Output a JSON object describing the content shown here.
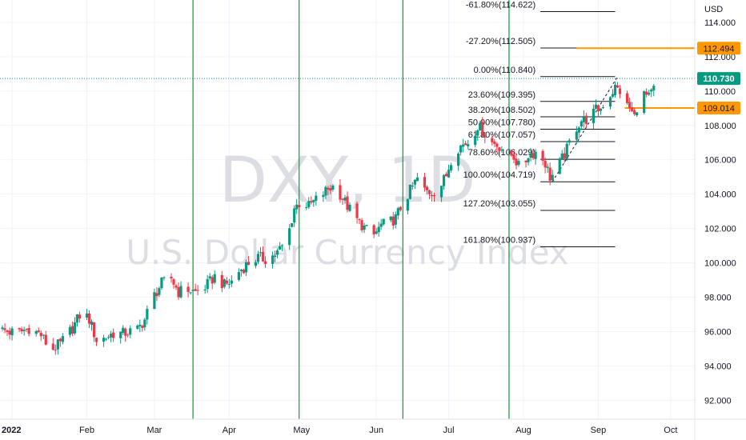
{
  "chart_data": {
    "type": "candlestick",
    "watermark": {
      "symbol": "DXY, 1D",
      "name": "U.S. Dollar Currency Index"
    },
    "currency": "USD",
    "ylim": [
      90.9,
      115.3
    ],
    "y_ticks": [
      "92.000",
      "94.000",
      "96.000",
      "98.000",
      "100.000",
      "102.000",
      "104.000",
      "106.000",
      "108.000",
      "110.000",
      "112.000",
      "114.000"
    ],
    "x_ticks": [
      {
        "label": "2022",
        "x": 0
      },
      {
        "label": "Feb",
        "x": 31
      },
      {
        "label": "Mar",
        "x": 59
      },
      {
        "label": "Apr",
        "x": 90
      },
      {
        "label": "May",
        "x": 120
      },
      {
        "label": "Jun",
        "x": 151
      },
      {
        "label": "Jul",
        "x": 181
      },
      {
        "label": "Aug",
        "x": 212
      },
      {
        "label": "Sep",
        "x": 243
      },
      {
        "label": "Oct",
        "x": 273
      }
    ],
    "xlim": [
      -5,
      283
    ],
    "close_path": [
      [
        -5,
        96.1
      ],
      [
        2,
        95.9
      ],
      [
        7,
        96.2
      ],
      [
        12,
        95.8
      ],
      [
        16,
        94.9
      ],
      [
        20,
        95.3
      ],
      [
        25,
        96.2
      ],
      [
        29,
        97.2
      ],
      [
        32,
        96.7
      ],
      [
        35,
        95.5
      ],
      [
        38,
        95.6
      ],
      [
        42,
        95.9
      ],
      [
        46,
        95.9
      ],
      [
        52,
        96.1
      ],
      [
        55,
        96.7
      ],
      [
        58,
        97.9
      ],
      [
        62,
        98.8
      ],
      [
        66,
        99.1
      ],
      [
        69,
        98.3
      ],
      [
        72,
        98.5
      ],
      [
        76,
        98.3
      ],
      [
        80,
        98.6
      ],
      [
        84,
        99.2
      ],
      [
        88,
        98.7
      ],
      [
        91,
        98.9
      ],
      [
        94,
        99.5
      ],
      [
        98,
        100.0
      ],
      [
        102,
        100.3
      ],
      [
        106,
        100.2
      ],
      [
        110,
        100.6
      ],
      [
        114,
        101.3
      ],
      [
        117,
        103.2
      ],
      [
        120,
        103.6
      ],
      [
        123,
        103.3
      ],
      [
        127,
        103.8
      ],
      [
        131,
        104.3
      ],
      [
        134,
        104.5
      ],
      [
        136,
        104.0
      ],
      [
        139,
        103.3
      ],
      [
        143,
        102.5
      ],
      [
        147,
        101.9
      ],
      [
        150,
        101.6
      ],
      [
        153,
        102.2
      ],
      [
        156,
        102.3
      ],
      [
        159,
        102.6
      ],
      [
        162,
        103.5
      ],
      [
        165,
        104.2
      ],
      [
        168,
        104.9
      ],
      [
        171,
        104.2
      ],
      [
        174,
        104.1
      ],
      [
        177,
        104.3
      ],
      [
        180,
        105.1
      ],
      [
        183,
        106.5
      ],
      [
        186,
        106.8
      ],
      [
        190,
        107.1
      ],
      [
        193,
        108.0
      ],
      [
        196,
        107.5
      ],
      [
        199,
        107.0
      ],
      [
        202,
        106.8
      ],
      [
        205,
        106.4
      ],
      [
        208,
        106.2
      ],
      [
        211,
        105.3
      ],
      [
        214,
        106.3
      ],
      [
        218,
        106.5
      ],
      [
        221,
        105.8
      ],
      [
        223,
        105.0
      ],
      [
        225,
        105.2
      ],
      [
        227,
        105.8
      ],
      [
        230,
        106.6
      ],
      [
        233,
        107.7
      ],
      [
        236,
        108.3
      ],
      [
        239,
        108.4
      ],
      [
        242,
        108.9
      ],
      [
        244,
        109.0
      ],
      [
        246,
        109.5
      ],
      [
        248,
        109.8
      ],
      [
        250,
        110.2
      ],
      [
        252,
        110.0
      ],
      [
        254,
        109.2
      ],
      [
        256,
        109.0
      ],
      [
        258,
        108.5
      ],
      [
        260,
        109.7
      ],
      [
        262,
        109.8
      ],
      [
        264,
        109.6
      ],
      [
        266,
        110.1
      ],
      [
        268,
        110.73
      ]
    ],
    "current_price": {
      "label": "110.730",
      "value": 110.73,
      "color": "#089981"
    },
    "horizontal_lines": [
      {
        "label": "112.494",
        "value": 112.494,
        "x_start": 234,
        "color": "#ff9800"
      },
      {
        "label": "109.014",
        "value": 109.014,
        "x_start": 254,
        "color": "#ff9800"
      }
    ],
    "vertical_lines": [
      {
        "x": 75,
        "color": "#089f2c"
      },
      {
        "x": 119,
        "color": "#089f2c"
      },
      {
        "x": 162,
        "color": "#089f2c"
      },
      {
        "x": 206,
        "color": "#089f2c"
      }
    ],
    "fibonacci": {
      "x_start": 219,
      "x_end": 250,
      "trend_from": {
        "x": 224,
        "y": 104.719
      },
      "trend_to": {
        "x": 251,
        "y": 110.84
      },
      "levels": [
        {
          "label": "-61.80%(114.622)",
          "value": 114.622
        },
        {
          "label": "-27.20%(112.505)",
          "value": 112.505
        },
        {
          "label": "0.00%(110.840)",
          "value": 110.84
        },
        {
          "label": "23.60%(109.395)",
          "value": 109.395
        },
        {
          "label": "38.20%(108.502)",
          "value": 108.502
        },
        {
          "label": "50.00%(107.780)",
          "value": 107.78
        },
        {
          "label": "61.80%(107.057)",
          "value": 107.057
        },
        {
          "label": "78.60%(106.029)",
          "value": 106.029
        },
        {
          "label": "100.00%(104.719)",
          "value": 104.719
        },
        {
          "label": "127.20%(103.055)",
          "value": 103.055
        },
        {
          "label": "161.80%(100.937)",
          "value": 100.937
        }
      ]
    },
    "colors": {
      "up": "#089981",
      "down": "#f23645",
      "grid": "#f0f3fa",
      "axis_text": "#131722"
    }
  }
}
